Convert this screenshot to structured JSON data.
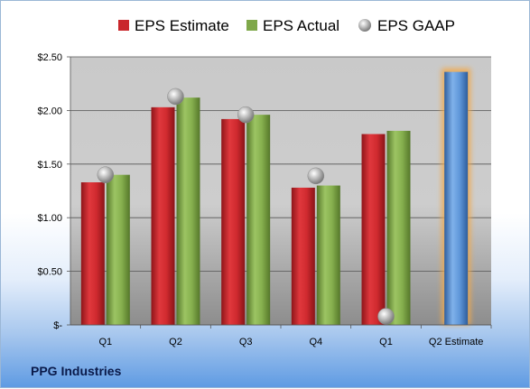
{
  "company": "PPG Industries",
  "legend": [
    {
      "label": "EPS Estimate",
      "icon": "red-square-icon"
    },
    {
      "label": "EPS Actual",
      "icon": "green-square-icon"
    },
    {
      "label": "EPS GAAP",
      "icon": "gray-sphere-icon"
    }
  ],
  "colors": {
    "estimate": "#c9262b",
    "actual": "#7fa84a",
    "gaap": "#b8b8b8",
    "forecast": "#4b86d0",
    "forecast_glow": "#f2a94a"
  },
  "chart_data": {
    "type": "bar",
    "categories": [
      "Q1",
      "Q2",
      "Q3",
      "Q4",
      "Q1",
      "Q2 Estimate"
    ],
    "series": [
      {
        "name": "EPS Estimate",
        "values": [
          1.33,
          2.03,
          1.92,
          1.28,
          1.78,
          null
        ]
      },
      {
        "name": "EPS Actual",
        "values": [
          1.4,
          2.12,
          1.96,
          1.3,
          1.81,
          null
        ]
      },
      {
        "name": "EPS GAAP",
        "values": [
          1.4,
          2.13,
          1.96,
          1.39,
          0.08,
          null
        ]
      },
      {
        "name": "Q2 Estimate",
        "values": [
          null,
          null,
          null,
          null,
          null,
          2.36
        ]
      }
    ],
    "ylim": [
      0,
      2.5
    ],
    "yticks": [
      0,
      0.5,
      1.0,
      1.5,
      2.0,
      2.5
    ],
    "ytick_labels": [
      "$-",
      "$0.50",
      "$1.00",
      "$1.50",
      "$2.00",
      "$2.50"
    ],
    "grid": true,
    "legend_position": "top"
  }
}
